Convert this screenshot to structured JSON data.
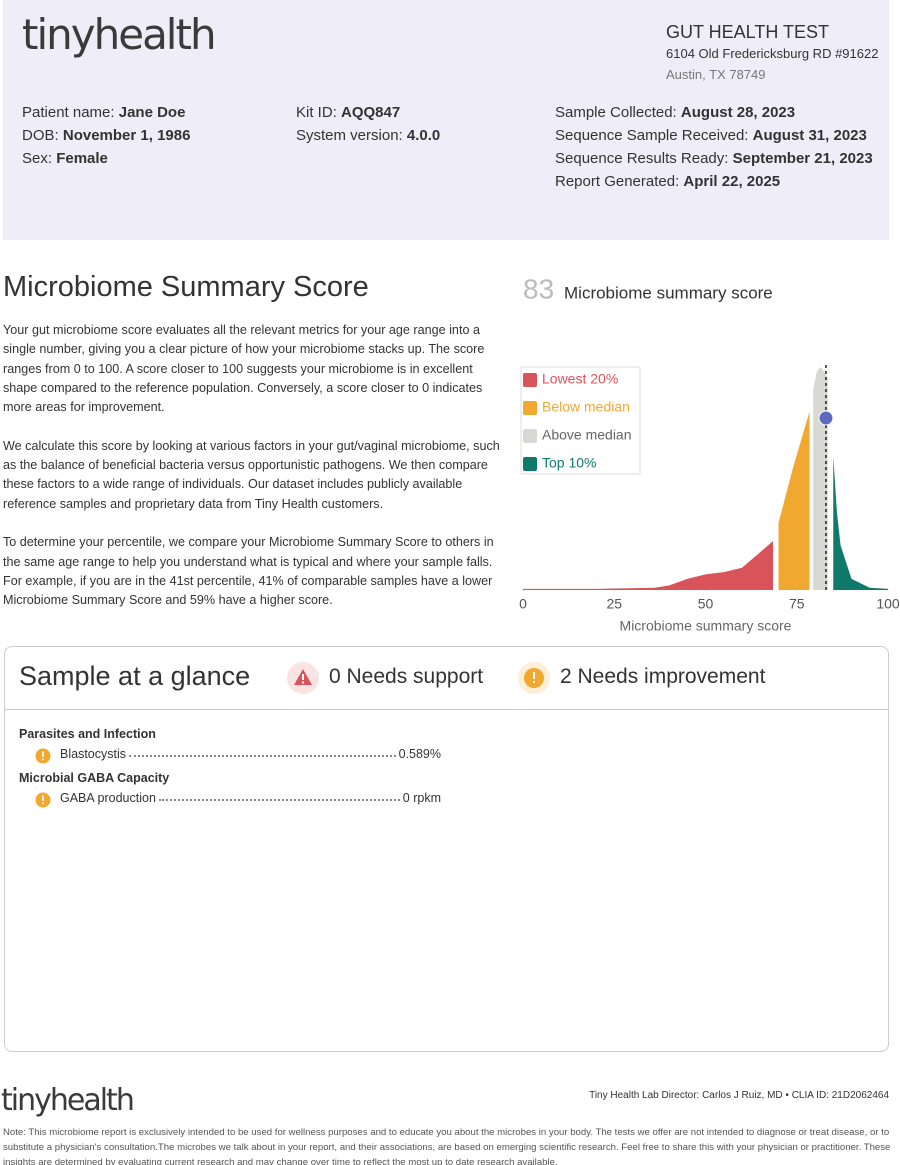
{
  "header": {
    "logo": "tinyhealth",
    "test_title": "GUT HEALTH TEST",
    "address_line_1": "6104 Old Fredericksburg RD #91622",
    "address_line_2": "Austin, TX 78749",
    "columns": [
      [
        {
          "label": "Patient name:",
          "value": "Jane Doe"
        },
        {
          "label": "DOB:",
          "value": "November 1, 1986"
        },
        {
          "label": "Sex:",
          "value": "Female"
        }
      ],
      [
        {
          "label": "Kit ID:",
          "value": "AQQ847"
        },
        {
          "label": "System version:",
          "value": "4.0.0"
        }
      ],
      [
        {
          "label": "Sample Collected:",
          "value": "August 28, 2023"
        },
        {
          "label": "Sequence Sample Received:",
          "value": "August 31, 2023"
        },
        {
          "label": "Sequence Results Ready:",
          "value": "September 21, 2023"
        },
        {
          "label": "Report Generated:",
          "value": "April 22, 2025"
        }
      ]
    ]
  },
  "summary": {
    "title": "Microbiome Summary Score",
    "paragraphs": [
      "Your gut microbiome score evaluates all the relevant metrics for your age range into a single number, giving you a clear picture of how your microbiome stacks up. The score ranges from 0 to 100. A score closer to 100 suggests your microbiome is in excellent shape compared to the reference population. Conversely, a score closer to 0 indicates more areas for improvement.",
      "We calculate this score by looking at various factors in your gut/vaginal microbiome, such as the balance of beneficial bacteria versus opportunistic pathogens. We then compare these factors to a wide range of individuals. Our dataset includes publicly available reference samples and proprietary data from Tiny Health customers.",
      "To determine your percentile, we compare your Microbiome Summary Score to others in the same age range to help you understand what is typical and where your sample falls. For example, if you are in the 41st percentile, 41% of comparable samples have a lower Microbiome Summary Score and 59% have a higher score."
    ]
  },
  "chart_data": {
    "type": "area",
    "title": "Microbiome summary score",
    "score": 83,
    "xlabel": "Microbiome summary score",
    "xlim": [
      0,
      100
    ],
    "xticks": [
      0,
      25,
      50,
      75,
      100
    ],
    "ylim": [
      0,
      1
    ],
    "legend": "upper left",
    "series": [
      {
        "name": "Lowest 20%",
        "color": "#d9535b",
        "x": [
          0,
          20,
          36,
          40,
          45,
          50,
          55,
          60,
          65,
          68.5
        ],
        "values": [
          0.005,
          0.005,
          0.01,
          0.02,
          0.05,
          0.07,
          0.08,
          0.1,
          0.17,
          0.22
        ]
      },
      {
        "name": "Below median",
        "color": "#f0a830",
        "x": [
          70,
          74,
          78.5
        ],
        "values": [
          0.3,
          0.55,
          0.8
        ]
      },
      {
        "name": "Above median",
        "color": "#d9d9d3",
        "x": [
          79.5,
          80.5,
          81.5,
          82.5,
          83.5
        ],
        "values": [
          0.9,
          0.98,
          1.0,
          0.98,
          0.95
        ]
      },
      {
        "name": "Top 10%",
        "color": "#0f7a6a",
        "x": [
          85,
          86,
          87,
          90,
          95,
          100
        ],
        "values": [
          0.6,
          0.35,
          0.2,
          0.05,
          0.01,
          0.005
        ]
      }
    ]
  },
  "glance": {
    "title": "Sample at a glance",
    "needs_support": "0 Needs support",
    "needs_improvement": "2 Needs improvement",
    "groups": [
      {
        "title": "Parasites and Infection",
        "items": [
          {
            "name": "Blastocystis",
            "value": "0.589%"
          }
        ]
      },
      {
        "title": "Microbial GABA Capacity",
        "items": [
          {
            "name": "GABA production",
            "value": "0 rpkm"
          }
        ]
      }
    ]
  },
  "footer": {
    "logo": "tinyhealth",
    "director": "Tiny Health Lab Director: Carlos J Ruiz, MD • CLIA ID: 21D2062464",
    "note": "Note: This microbiome report is exclusively intended to be used for wellness purposes and to educate you about the microbes in your body. The tests we offer are not intended to diagnose or treat disease, or to substitute a physician's consultation.The microbes we talk about in your report, and their associations, are based on emerging scientific research. Feel free to share this with your physician or practitioner. These insights are determined by evaluating current research and may change over time to reflect the most up to date research available."
  }
}
